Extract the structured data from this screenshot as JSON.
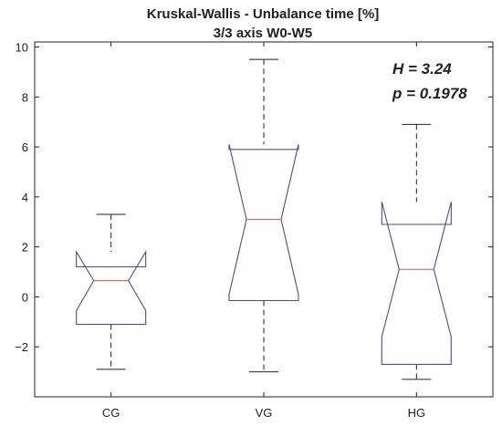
{
  "chart_data": {
    "type": "boxplot",
    "notched": true,
    "title": "Kruskal-Wallis - Unbalance time [%]",
    "subtitle": "3/3 axis W0-W5",
    "xlabel": "",
    "ylabel": "",
    "categories": [
      "CG",
      "VG",
      "HG"
    ],
    "ylim": [
      -4,
      10.2
    ],
    "yticks": [
      -2,
      0,
      2,
      4,
      6,
      8,
      10
    ],
    "ytick_labels": [
      "−2",
      "0",
      "2",
      "4",
      "6",
      "8",
      "10"
    ],
    "boxes": [
      {
        "category": "CG",
        "whisker_low": -2.9,
        "q1": -1.1,
        "median": 0.65,
        "q3": 1.2,
        "whisker_high": 3.3,
        "notch_low": -0.55,
        "notch_high": 1.8
      },
      {
        "category": "VG",
        "whisker_low": -3.0,
        "q1": -0.15,
        "median": 3.1,
        "q3": 5.9,
        "whisker_high": 9.5,
        "notch_low": 0.1,
        "notch_high": 6.1
      },
      {
        "category": "HG",
        "whisker_low": -3.3,
        "q1": -2.7,
        "median": 1.1,
        "q3": 2.9,
        "whisker_high": 6.9,
        "notch_low": -1.6,
        "notch_high": 3.8
      }
    ],
    "annotations": [
      "H = 3.24",
      "p = 0.1978"
    ],
    "grid": false,
    "colors": {
      "box": "#4a4aa6",
      "median": "#d86a6a",
      "whisker": "#222222",
      "axis": "#222222"
    }
  }
}
